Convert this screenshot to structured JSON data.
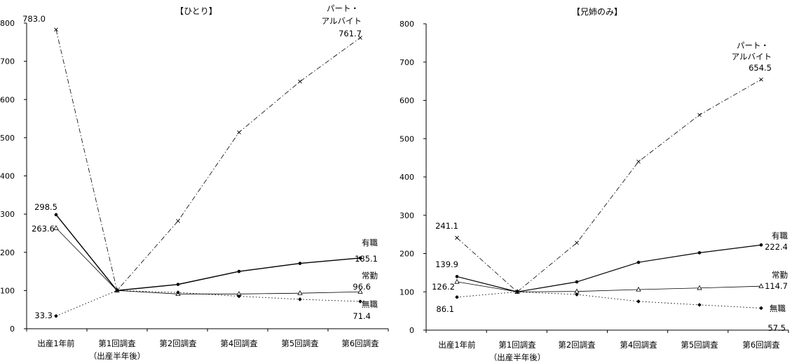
{
  "chart_data": [
    {
      "type": "line",
      "title": "【ひとり】",
      "categories": [
        "出産1年前",
        "第1回調査",
        "第2回調査",
        "第4回調査",
        "第5回調査",
        "第6回調査"
      ],
      "category_sub": [
        "",
        "（出産半年後）",
        "",
        "",
        "",
        ""
      ],
      "ylim": [
        0,
        800
      ],
      "yticks": [
        0,
        100,
        200,
        300,
        400,
        500,
        600,
        700,
        800
      ],
      "grid": false,
      "series": [
        {
          "name": "パート・アルバイト",
          "label_lines": [
            "パート・",
            "アルバイト"
          ],
          "values": [
            783.0,
            100,
            282,
            514,
            647,
            761.7
          ],
          "value_labels": [
            "783.0",
            "",
            "",
            "",
            "",
            "761.7"
          ],
          "style": "dashdot",
          "marker": "x",
          "width": 0.8
        },
        {
          "name": "有職",
          "label_lines": [
            "有職"
          ],
          "values": [
            298.5,
            100,
            116,
            150,
            171,
            185.1
          ],
          "value_labels": [
            "298.5",
            "",
            "",
            "",
            "",
            "185.1"
          ],
          "style": "solid",
          "marker": "dot",
          "width": 1.4
        },
        {
          "name": "常勤",
          "label_lines": [
            "常勤"
          ],
          "values": [
            263.6,
            100,
            91,
            91,
            93,
            96.6
          ],
          "value_labels": [
            "263.6",
            "",
            "",
            "",
            "",
            "96.6"
          ],
          "style": "solid",
          "marker": "triangle",
          "width": 0.8
        },
        {
          "name": "無職",
          "label_lines": [
            "無職"
          ],
          "values": [
            33.3,
            100,
            95,
            85,
            77,
            71.4
          ],
          "value_labels": [
            "33.3",
            "",
            "",
            "",
            "",
            "71.4"
          ],
          "style": "dotted",
          "marker": "diamond",
          "width": 0.9
        }
      ]
    },
    {
      "type": "line",
      "title": "【兄姉のみ】",
      "categories": [
        "出産1年前",
        "第1回調査",
        "第2回調査",
        "第4回調査",
        "第5回調査",
        "第6回調査"
      ],
      "category_sub": [
        "",
        "（出産半年後）",
        "",
        "",
        "",
        ""
      ],
      "ylim": [
        0,
        800
      ],
      "yticks": [
        0,
        100,
        200,
        300,
        400,
        500,
        600,
        700,
        800
      ],
      "grid": false,
      "series": [
        {
          "name": "パート・アルバイト",
          "label_lines": [
            "パート・",
            "アルバイト"
          ],
          "values": [
            241.1,
            100,
            228,
            440,
            562,
            654.5
          ],
          "value_labels": [
            "241.1",
            "",
            "",
            "",
            "",
            "654.5"
          ],
          "style": "dashdot",
          "marker": "x",
          "width": 0.8
        },
        {
          "name": "有職",
          "label_lines": [
            "有職"
          ],
          "values": [
            139.9,
            100,
            126,
            177,
            202,
            222.4
          ],
          "value_labels": [
            "139.9",
            "",
            "",
            "",
            "",
            "222.4"
          ],
          "style": "solid",
          "marker": "dot",
          "width": 1.2
        },
        {
          "name": "常勤",
          "label_lines": [
            "常勤"
          ],
          "values": [
            126.2,
            100,
            101,
            106,
            110,
            114.7
          ],
          "value_labels": [
            "126.2",
            "",
            "",
            "",
            "",
            "114.7"
          ],
          "style": "solid",
          "marker": "triangle",
          "width": 0.8
        },
        {
          "name": "無職",
          "label_lines": [
            "無職"
          ],
          "values": [
            86.1,
            100,
            93,
            75,
            66,
            57.5
          ],
          "value_labels": [
            "86.1",
            "",
            "",
            "",
            "",
            "57.5"
          ],
          "style": "dotted",
          "marker": "diamond",
          "width": 0.9
        }
      ]
    }
  ]
}
